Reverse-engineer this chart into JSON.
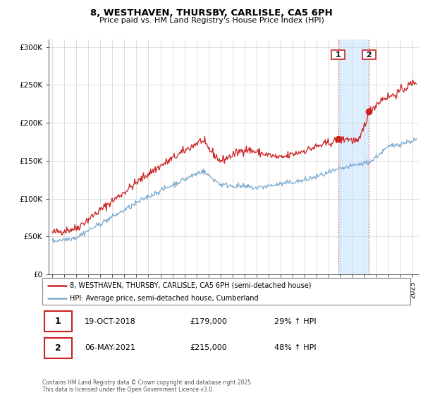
{
  "title": "8, WESTHAVEN, THURSBY, CARLISLE, CA5 6PH",
  "subtitle": "Price paid vs. HM Land Registry's House Price Index (HPI)",
  "legend_label1": "8, WESTHAVEN, THURSBY, CARLISLE, CA5 6PH (semi-detached house)",
  "legend_label2": "HPI: Average price, semi-detached house, Cumberland",
  "marker1_date": "19-OCT-2018",
  "marker1_price": "£179,000",
  "marker1_hpi": "29% ↑ HPI",
  "marker2_date": "06-MAY-2021",
  "marker2_price": "£215,000",
  "marker2_hpi": "48% ↑ HPI",
  "footer": "Contains HM Land Registry data © Crown copyright and database right 2025.\nThis data is licensed under the Open Government Licence v3.0.",
  "line1_color": "#cc2222",
  "line2_color": "#7aabcf",
  "marker1_x": 2018.8,
  "marker2_x": 2021.35,
  "marker1_y": 179000,
  "marker2_y": 215000,
  "shading_color": "#ddeeff",
  "ylim": [
    0,
    310000
  ],
  "xlim_start": 1994.7,
  "xlim_end": 2025.5,
  "yticks": [
    0,
    50000,
    100000,
    150000,
    200000,
    250000,
    300000
  ],
  "ytick_labels": [
    "£0",
    "£50K",
    "£100K",
    "£150K",
    "£200K",
    "£250K",
    "£300K"
  ],
  "xticks": [
    1995,
    1996,
    1997,
    1998,
    1999,
    2000,
    2001,
    2002,
    2003,
    2004,
    2005,
    2006,
    2007,
    2008,
    2009,
    2010,
    2011,
    2012,
    2013,
    2014,
    2015,
    2016,
    2017,
    2018,
    2019,
    2020,
    2021,
    2022,
    2023,
    2024,
    2025
  ]
}
